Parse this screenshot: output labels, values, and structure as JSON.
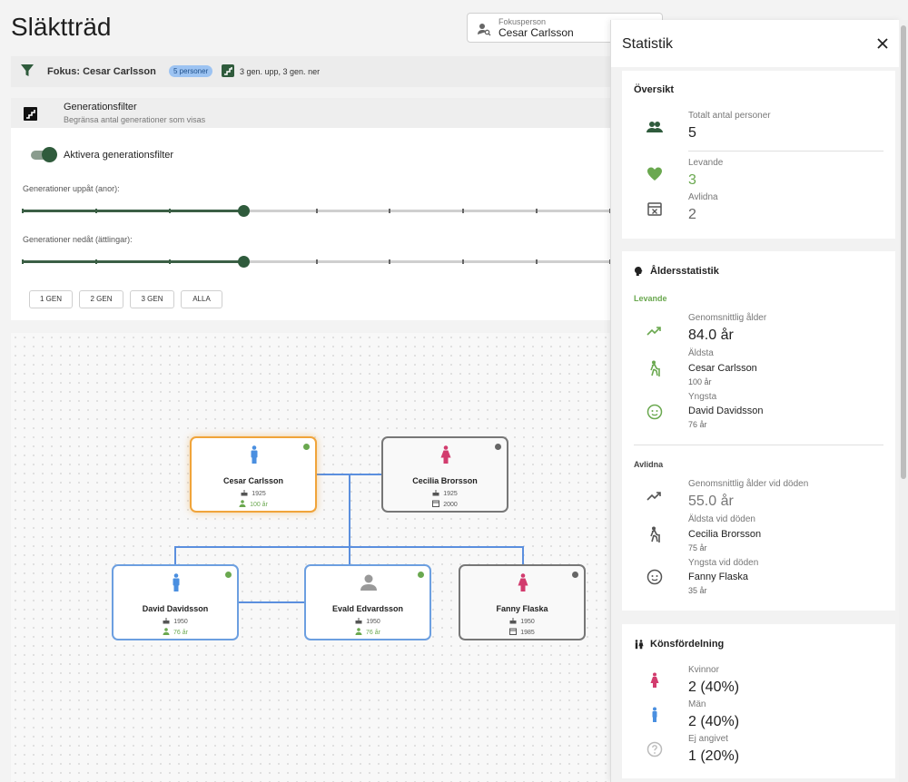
{
  "page": {
    "title": "Släktträd"
  },
  "focus_field": {
    "label": "Fokusperson",
    "value": "Cesar Carlsson"
  },
  "focus_bar": {
    "text": "Fokus: Cesar Carlsson",
    "badge": "5 personer",
    "gen_text": "3 gen. upp, 3 gen. ner"
  },
  "gen_filter": {
    "title": "Generationsfilter",
    "subtitle": "Begränsa antal generationer som visas",
    "toggle_label": "Aktivera generationsfilter",
    "toggle_on": true,
    "up_label": "Generationer uppåt (anor):",
    "up_value": 3,
    "down_label": "Generationer nedåt (ättlingar):",
    "down_value": 3,
    "buttons": [
      "1 GEN",
      "2 GEN",
      "3 GEN",
      "ALLA"
    ]
  },
  "tree": {
    "nodes": [
      {
        "name": "Cesar Carlsson",
        "gender": "male",
        "birth": "1925",
        "second": "100 år",
        "alive": true,
        "focus": true
      },
      {
        "name": "Cecilia Brorsson",
        "gender": "female",
        "birth": "1925",
        "second": "2000",
        "alive": false,
        "focus": false
      },
      {
        "name": "David Davidsson",
        "gender": "male",
        "birth": "1950",
        "second": "76 år",
        "alive": true,
        "focus": false
      },
      {
        "name": "Evald Edvardsson",
        "gender": "unknown",
        "birth": "1950",
        "second": "76 år",
        "alive": true,
        "focus": false
      },
      {
        "name": "Fanny Flaska",
        "gender": "female",
        "birth": "1950",
        "second": "1985",
        "alive": false,
        "focus": false
      }
    ]
  },
  "stats": {
    "title": "Statistik",
    "overview": {
      "title": "Översikt",
      "total_label": "Totalt antal personer",
      "total_value": "5",
      "living_label": "Levande",
      "living_value": "3",
      "dead_label": "Avlidna",
      "dead_value": "2"
    },
    "age": {
      "title": "Åldersstatistik",
      "living_title": "Levande",
      "living_avg_label": "Genomsnittlig ålder",
      "living_avg_value": "84.0 år",
      "living_oldest_label": "Äldsta",
      "living_oldest_name": "Cesar Carlsson",
      "living_oldest_age": "100 år",
      "living_youngest_label": "Yngsta",
      "living_youngest_name": "David Davidsson",
      "living_youngest_age": "76 år",
      "dead_title": "Avlidna",
      "dead_avg_label": "Genomsnittlig ålder vid döden",
      "dead_avg_value": "55.0 år",
      "dead_oldest_label": "Äldsta vid döden",
      "dead_oldest_name": "Cecilia Brorsson",
      "dead_oldest_age": "75 år",
      "dead_youngest_label": "Yngsta vid döden",
      "dead_youngest_name": "Fanny Flaska",
      "dead_youngest_age": "35 år"
    },
    "gender": {
      "title": "Könsfördelning",
      "women_label": "Kvinnor",
      "women_value": "2 (40%)",
      "men_label": "Män",
      "men_value": "2 (40%)",
      "unknown_label": "Ej angivet",
      "unknown_value": "1 (20%)"
    }
  },
  "colors": {
    "accent": "#2f5b3c",
    "male": "#4a8fe0",
    "female": "#d23c6e",
    "alive": "#6aa84f",
    "focus": "#f0a43a"
  }
}
